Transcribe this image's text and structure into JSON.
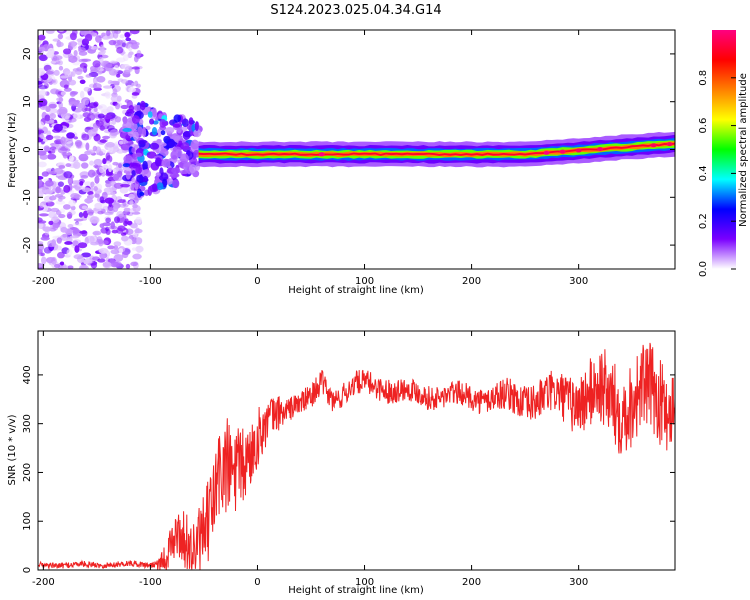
{
  "figure": {
    "title": "S124.2023.025.04.34.G14"
  },
  "chart_data": [
    {
      "type": "heatmap",
      "title": "",
      "xlabel": "Height of straight line (km)",
      "ylabel": "Frequency (Hz)",
      "xlim": [
        -205,
        390
      ],
      "ylim": [
        -25,
        25
      ],
      "xticks": [
        -200,
        -100,
        0,
        100,
        200,
        300
      ],
      "yticks": [
        -20,
        -10,
        0,
        10,
        20
      ],
      "colorbar": {
        "label": "Normalized spectral amplitude",
        "range": [
          0.0,
          1.0
        ],
        "ticks": [
          0.0,
          0.2,
          0.4,
          0.6,
          0.8
        ],
        "colormap": [
          "#ffffff",
          "#7a00ff",
          "#0000ff",
          "#00ffff",
          "#00ff00",
          "#ffff00",
          "#ff8000",
          "#ff0000",
          "#ff0080"
        ]
      },
      "features": [
        {
          "x_range": [
            -205,
            -110
          ],
          "freq_range": [
            -25,
            25
          ],
          "amplitude": 0.1,
          "kind": "scattered noise"
        },
        {
          "x_range": [
            -125,
            -55
          ],
          "freq_range": [
            -10,
            12
          ],
          "amplitude": 0.35,
          "kind": "scattered speckles"
        },
        {
          "x_range": [
            -55,
            390
          ],
          "freq_center": -1.0,
          "freq_halfwidth": 1.5,
          "amplitude": 0.95,
          "kind": "carrier line"
        }
      ]
    },
    {
      "type": "line",
      "title": "",
      "xlabel": "Height of straight line (km)",
      "ylabel": "SNR (10 * v/v)",
      "xlim": [
        -205,
        390
      ],
      "ylim": [
        0,
        490
      ],
      "xticks": [
        -200,
        -100,
        0,
        100,
        200,
        300
      ],
      "yticks": [
        0,
        100,
        200,
        300,
        400
      ],
      "color": "#ee2222",
      "envelope": [
        {
          "x": -205,
          "y": 10
        },
        {
          "x": -100,
          "y": 12
        },
        {
          "x": -85,
          "y": 25
        },
        {
          "x": -75,
          "y": 60
        },
        {
          "x": -60,
          "y": 55
        },
        {
          "x": -45,
          "y": 110
        },
        {
          "x": -35,
          "y": 170
        },
        {
          "x": -25,
          "y": 190
        },
        {
          "x": -15,
          "y": 230
        },
        {
          "x": 0,
          "y": 270
        },
        {
          "x": 10,
          "y": 290
        },
        {
          "x": 20,
          "y": 320
        },
        {
          "x": 35,
          "y": 345
        },
        {
          "x": 50,
          "y": 350
        },
        {
          "x": 60,
          "y": 380
        },
        {
          "x": 70,
          "y": 350
        },
        {
          "x": 90,
          "y": 380
        },
        {
          "x": 120,
          "y": 375
        },
        {
          "x": 150,
          "y": 360
        },
        {
          "x": 200,
          "y": 355
        },
        {
          "x": 250,
          "y": 350
        },
        {
          "x": 300,
          "y": 355
        },
        {
          "x": 340,
          "y": 350
        },
        {
          "x": 390,
          "y": 355
        }
      ],
      "noise_amplitude": [
        {
          "x": -205,
          "y": 6
        },
        {
          "x": -100,
          "y": 6
        },
        {
          "x": -80,
          "y": 40
        },
        {
          "x": -30,
          "y": 110
        },
        {
          "x": 0,
          "y": 60
        },
        {
          "x": 30,
          "y": 25
        },
        {
          "x": 100,
          "y": 25
        },
        {
          "x": 200,
          "y": 25
        },
        {
          "x": 280,
          "y": 45
        },
        {
          "x": 330,
          "y": 90
        },
        {
          "x": 390,
          "y": 90
        }
      ]
    }
  ]
}
